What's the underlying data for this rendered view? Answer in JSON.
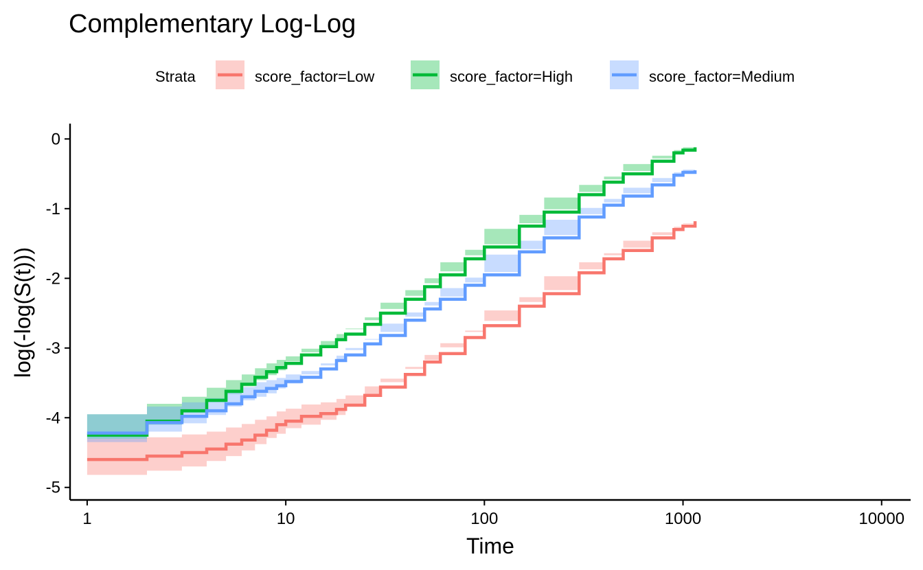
{
  "chart_data": {
    "type": "line",
    "title": "Complementary Log-Log",
    "xlabel": "Time",
    "ylabel": "log(-log(S(t)))",
    "x_scale": "log10",
    "xlim": [
      0.82,
      14000
    ],
    "ylim": [
      -5.18,
      0.22
    ],
    "x_ticks": [
      1,
      10,
      100,
      1000,
      10000
    ],
    "x_tick_labels": [
      "1",
      "10",
      "100",
      "1000",
      "10000"
    ],
    "y_ticks": [
      0,
      -1,
      -2,
      -3,
      -4,
      -5
    ],
    "y_tick_labels": [
      "0",
      "-1",
      "-2",
      "-3",
      "-4",
      "-5"
    ],
    "grid": false,
    "legend": {
      "title": "Strata",
      "position": "top"
    },
    "series": [
      {
        "name": "score_factor=Low",
        "color": "#F8766D",
        "x": [
          1,
          2,
          3,
          4,
          5,
          6,
          7,
          8,
          9,
          10,
          12,
          15,
          18,
          20,
          25,
          30,
          40,
          50,
          60,
          80,
          100,
          150,
          200,
          300,
          400,
          500,
          700,
          900,
          1000,
          1150
        ],
        "y": [
          -4.6,
          -4.55,
          -4.5,
          -4.45,
          -4.38,
          -4.32,
          -4.25,
          -4.18,
          -4.1,
          -4.05,
          -3.98,
          -3.94,
          -3.88,
          -3.82,
          -3.68,
          -3.56,
          -3.38,
          -3.2,
          -3.08,
          -2.85,
          -2.68,
          -2.4,
          -2.22,
          -1.92,
          -1.72,
          -1.6,
          -1.42,
          -1.3,
          -1.25,
          -1.18
        ],
        "lower": [
          -4.9,
          -4.82,
          -4.76,
          -4.7,
          -4.62,
          -4.55,
          -4.47,
          -4.38,
          -4.29,
          -4.23,
          -4.15,
          -4.1,
          -4.03,
          -3.96,
          -3.81,
          -3.68,
          -3.49,
          -3.3,
          -3.17,
          -2.93,
          -2.75,
          -2.46,
          -2.27,
          -1.97,
          -1.77,
          -1.64,
          -1.46,
          -1.34,
          -1.29,
          -1.22
        ],
        "upper": [
          -4.3,
          -4.28,
          -4.24,
          -4.2,
          -4.14,
          -4.09,
          -4.03,
          -3.98,
          -3.91,
          -3.87,
          -3.81,
          -3.78,
          -3.73,
          -3.68,
          -3.55,
          -3.44,
          -3.27,
          -3.1,
          -2.99,
          -2.77,
          -2.61,
          -2.34,
          -2.17,
          -1.87,
          -1.67,
          -1.56,
          -1.38,
          -1.26,
          -1.21,
          -1.14
        ]
      },
      {
        "name": "score_factor=High",
        "color": "#00BA38",
        "x": [
          1,
          2,
          3,
          4,
          5,
          6,
          7,
          8,
          9,
          10,
          12,
          15,
          18,
          20,
          25,
          30,
          40,
          50,
          60,
          80,
          100,
          150,
          200,
          300,
          400,
          500,
          700,
          900,
          1000,
          1150
        ],
        "y": [
          -4.25,
          -4.05,
          -3.9,
          -3.75,
          -3.62,
          -3.52,
          -3.42,
          -3.34,
          -3.28,
          -3.22,
          -3.1,
          -2.98,
          -2.88,
          -2.8,
          -2.66,
          -2.5,
          -2.3,
          -2.12,
          -1.95,
          -1.72,
          -1.55,
          -1.25,
          -1.05,
          -0.8,
          -0.62,
          -0.5,
          -0.32,
          -0.2,
          -0.16,
          -0.12
        ],
        "lower": [
          -4.55,
          -4.3,
          -4.1,
          -3.93,
          -3.78,
          -3.66,
          -3.55,
          -3.46,
          -3.39,
          -3.32,
          -3.19,
          -3.06,
          -2.96,
          -2.87,
          -2.72,
          -2.56,
          -2.35,
          -2.17,
          -2.0,
          -1.77,
          -1.59,
          -1.29,
          -1.09,
          -0.84,
          -0.66,
          -0.54,
          -0.36,
          -0.24,
          -0.2,
          -0.16
        ],
        "upper": [
          -3.95,
          -3.8,
          -3.7,
          -3.57,
          -3.46,
          -3.38,
          -3.29,
          -3.22,
          -3.17,
          -3.12,
          -3.01,
          -2.9,
          -2.8,
          -2.73,
          -2.6,
          -2.44,
          -2.25,
          -2.07,
          -1.9,
          -1.67,
          -1.51,
          -1.21,
          -1.01,
          -0.76,
          -0.58,
          -0.46,
          -0.28,
          -0.16,
          -0.12,
          -0.08
        ]
      },
      {
        "name": "score_factor=Medium",
        "color": "#619CFF",
        "x": [
          1,
          2,
          3,
          4,
          5,
          6,
          7,
          8,
          9,
          10,
          12,
          15,
          18,
          20,
          25,
          30,
          40,
          50,
          60,
          80,
          100,
          150,
          200,
          300,
          400,
          500,
          700,
          900,
          1000,
          1150
        ],
        "y": [
          -4.22,
          -4.07,
          -3.98,
          -3.9,
          -3.8,
          -3.7,
          -3.62,
          -3.58,
          -3.54,
          -3.48,
          -3.42,
          -3.3,
          -3.18,
          -3.1,
          -2.94,
          -2.82,
          -2.6,
          -2.44,
          -2.3,
          -2.1,
          -1.95,
          -1.62,
          -1.42,
          -1.12,
          -0.95,
          -0.82,
          -0.66,
          -0.52,
          -0.48,
          -0.45
        ],
        "lower": [
          -4.55,
          -4.35,
          -4.2,
          -4.08,
          -3.96,
          -3.84,
          -3.75,
          -3.7,
          -3.65,
          -3.58,
          -3.51,
          -3.38,
          -3.25,
          -3.17,
          -3.0,
          -2.87,
          -2.65,
          -2.49,
          -2.34,
          -2.14,
          -1.99,
          -1.66,
          -1.46,
          -1.16,
          -0.99,
          -0.86,
          -0.7,
          -0.56,
          -0.52,
          -0.49
        ],
        "upper": [
          -3.95,
          -3.84,
          -3.78,
          -3.72,
          -3.64,
          -3.56,
          -3.49,
          -3.46,
          -3.43,
          -3.38,
          -3.33,
          -3.22,
          -3.11,
          -3.03,
          -2.88,
          -2.77,
          -2.55,
          -2.39,
          -2.26,
          -2.06,
          -1.91,
          -1.58,
          -1.38,
          -1.08,
          -0.91,
          -0.78,
          -0.62,
          -0.48,
          -0.44,
          -0.41
        ]
      }
    ]
  }
}
